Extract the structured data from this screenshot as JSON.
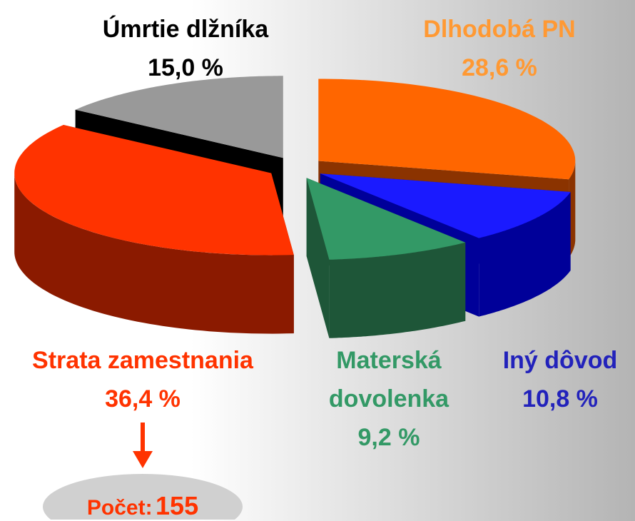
{
  "chart_data": {
    "type": "pie3d",
    "categories": [
      "Dlhodobá PN",
      "Iný dôvod",
      "Materská dovolenka",
      "Strata zamestnania",
      "Úmrtie dlžníka"
    ],
    "values": [
      28.6,
      10.8,
      9.2,
      36.4,
      15.0
    ],
    "value_labels": [
      "28,6 %",
      "10,8 %",
      "9,2 %",
      "36,4 %",
      "15,0 %"
    ],
    "colors": [
      "#ff6600",
      "#1a1aff",
      "#339966",
      "#ff3300",
      "#999999"
    ],
    "side_colors": [
      "#8b3300",
      "#000099",
      "#1e5638",
      "#8b1a00",
      "#000000"
    ],
    "label_colors": [
      "#ff9933",
      "#2222bb",
      "#339966",
      "#ff3300",
      "#000000"
    ],
    "count": {
      "label": "Počet:",
      "value": 155
    }
  }
}
